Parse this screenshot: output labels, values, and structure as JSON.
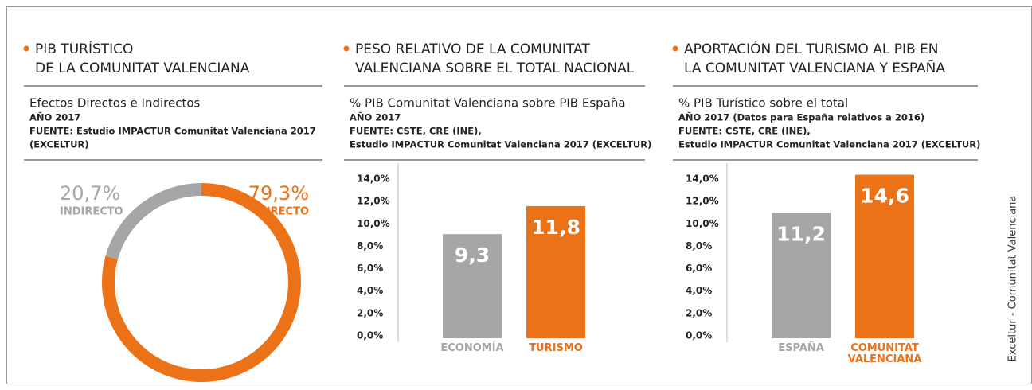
{
  "chart_data": [
    {
      "type": "donut",
      "title_lines": [
        "PIB TURÍSTICO",
        "DE LA COMUNITAT VALENCIANA"
      ],
      "subtitle": "Efectos Directos e Indirectos",
      "notes": [
        "AÑO 2017",
        "FUENTE: Estudio IMPACTUR Comunitat Valenciana 2017",
        "(EXCELTUR)"
      ],
      "categories": [
        "INDIRECTO",
        "DIRECTO"
      ],
      "values": [
        20.7,
        79.3
      ],
      "value_labels": [
        "20,7%",
        "79,3%"
      ],
      "colors": [
        "#a6a6a6",
        "#ec7218"
      ]
    },
    {
      "type": "bar",
      "title_lines": [
        "PESO RELATIVO DE LA COMUNITAT",
        "VALENCIANA SOBRE EL TOTAL NACIONAL"
      ],
      "subtitle": "% PIB Comunitat Valenciana sobre PIB España",
      "notes": [
        "AÑO 2017",
        "FUENTE: CSTE, CRE (INE),",
        "Estudio IMPACTUR Comunitat Valenciana 2017 (EXCELTUR)"
      ],
      "categories": [
        "ECONOMÍA",
        "TURISMO"
      ],
      "values": [
        9.3,
        11.8
      ],
      "value_labels": [
        "9,3",
        "11,8"
      ],
      "colors": [
        "#a6a6a6",
        "#ec7218"
      ],
      "ylim": [
        0,
        14
      ],
      "yticks": [
        {
          "value": 0,
          "label": "0,0%"
        },
        {
          "value": 2,
          "label": "2,0%"
        },
        {
          "value": 4,
          "label": "4,0%"
        },
        {
          "value": 6,
          "label": "6,0%"
        },
        {
          "value": 8,
          "label": "8,0%"
        },
        {
          "value": 10,
          "label": "10,0%"
        },
        {
          "value": 12,
          "label": "12,0%"
        },
        {
          "value": 14,
          "label": "14,0%"
        }
      ]
    },
    {
      "type": "bar",
      "title_lines": [
        "APORTACIÓN DEL TURISMO AL PIB EN",
        "LA COMUNITAT VALENCIANA Y ESPAÑA"
      ],
      "subtitle": "% PIB Turístico sobre el total",
      "notes": [
        "AÑO 2017 (Datos para España relativos a 2016)",
        "FUENTE: CSTE, CRE (INE),",
        "Estudio IMPACTUR Comunitat Valenciana 2017 (EXCELTUR)"
      ],
      "categories": [
        "ESPAÑA",
        "COMUNITAT VALENCIANA"
      ],
      "values": [
        11.2,
        14.6
      ],
      "value_labels": [
        "11,2",
        "14,6"
      ],
      "colors": [
        "#a6a6a6",
        "#ec7218"
      ],
      "ylim": [
        0,
        14
      ],
      "yticks": [
        {
          "value": 0,
          "label": "0,0%"
        },
        {
          "value": 2,
          "label": "2,0%"
        },
        {
          "value": 4,
          "label": "4,0%"
        },
        {
          "value": 6,
          "label": "6,0%"
        },
        {
          "value": 8,
          "label": "8,0%"
        },
        {
          "value": 10,
          "label": "10,0%"
        },
        {
          "value": 12,
          "label": "12,0%"
        },
        {
          "value": 14,
          "label": "14,0%"
        }
      ]
    }
  ],
  "credit": "Exceltur - Comunitat Valenciana"
}
